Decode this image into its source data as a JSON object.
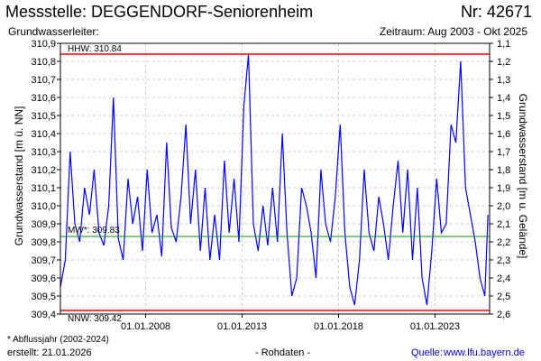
{
  "header": {
    "title": "Messstelle: DEGGENDORF-Seniorenheim",
    "number": "Nr: 42671",
    "aquifer": "Grundwasserleiter:",
    "period": "Zeitraum: Aug 2003 - Okt 2025"
  },
  "footer": {
    "footnote": "* Abflussjahr (2002-2024)",
    "created": "erstellt:  21.01.2026",
    "rawdata": "- Rohdaten -",
    "source_label": "Quelle:",
    "source_link": "www.lfu.bayern.de"
  },
  "colors": {
    "series": "#0000ff",
    "extreme_lines": "#ff0000",
    "mean_line": "#009900",
    "grid": "#cccccc"
  },
  "chart_data": {
    "type": "line",
    "title": "",
    "ylabel": "Grundwasserstand [m ü. NN]",
    "ylabel_right": "Grundwasserstand [m u. Gelände]",
    "xlim": [
      "2003-08-01",
      "2025-10-31"
    ],
    "ylim": [
      309.4,
      310.9
    ],
    "ylim_right": [
      2.6,
      1.1
    ],
    "x_ticks": [
      "01.01.2008",
      "01.01.2013",
      "01.01.2018",
      "01.01.2023"
    ],
    "y_ticks": [
      "309,4",
      "309,5",
      "309,6",
      "309,7",
      "309,8",
      "309,9",
      "310,0",
      "310,1",
      "310,2",
      "310,3",
      "310,4",
      "310,5",
      "310,6",
      "310,7",
      "310,8",
      "310,9"
    ],
    "y_right_ticks": [
      "2,6",
      "2,5",
      "2,4",
      "2,3",
      "2,2",
      "2,1",
      "2,0",
      "1,9",
      "1,8",
      "1,7",
      "1,6",
      "1,5",
      "1,4",
      "1,3",
      "1,2",
      "1,1"
    ],
    "grid": true,
    "reference_lines": [
      {
        "label": "HHW: 310.84",
        "value": 310.84
      },
      {
        "label": "MW*: 309.83",
        "value": 309.83
      },
      {
        "label": "NNW: 309.42",
        "value": 309.42
      }
    ],
    "series": [
      {
        "x": [
          "2003-08",
          "2003-11",
          "2004-02",
          "2004-05",
          "2004-08",
          "2004-11",
          "2005-02",
          "2005-05",
          "2005-08",
          "2005-11",
          "2006-02",
          "2006-05",
          "2006-08",
          "2006-11",
          "2007-02",
          "2007-05",
          "2007-08",
          "2007-11",
          "2008-02",
          "2008-05",
          "2008-08",
          "2008-11",
          "2009-02",
          "2009-05",
          "2009-08",
          "2009-11",
          "2010-02",
          "2010-05",
          "2010-08",
          "2010-11",
          "2011-02",
          "2011-05",
          "2011-08",
          "2011-11",
          "2012-02",
          "2012-05",
          "2012-08",
          "2012-11",
          "2013-02",
          "2013-05",
          "2013-08",
          "2013-11",
          "2014-02",
          "2014-05",
          "2014-08",
          "2014-11",
          "2015-02",
          "2015-05",
          "2015-08",
          "2015-11",
          "2016-02",
          "2016-05",
          "2016-08",
          "2016-11",
          "2017-02",
          "2017-05",
          "2017-08",
          "2017-11",
          "2018-02",
          "2018-05",
          "2018-08",
          "2018-11",
          "2019-02",
          "2019-05",
          "2019-08",
          "2019-11",
          "2020-02",
          "2020-05",
          "2020-08",
          "2020-11",
          "2021-02",
          "2021-05",
          "2021-08",
          "2021-11",
          "2022-02",
          "2022-05",
          "2022-08",
          "2022-11",
          "2023-02",
          "2023-05",
          "2023-08",
          "2023-11",
          "2024-02",
          "2024-05",
          "2024-08",
          "2024-11",
          "2025-02",
          "2025-05",
          "2025-08",
          "2025-10"
        ],
        "values": [
          309.55,
          309.7,
          310.3,
          309.9,
          309.8,
          310.1,
          309.95,
          310.2,
          309.85,
          309.78,
          310.0,
          310.6,
          309.82,
          309.7,
          310.15,
          309.9,
          310.05,
          309.75,
          310.2,
          309.85,
          309.95,
          309.72,
          310.35,
          309.88,
          309.8,
          310.05,
          310.45,
          309.9,
          310.2,
          309.75,
          310.1,
          309.7,
          309.95,
          309.7,
          310.25,
          309.85,
          310.15,
          309.8,
          310.55,
          310.84,
          309.9,
          309.75,
          310.0,
          309.78,
          310.1,
          309.8,
          310.4,
          309.85,
          309.5,
          309.6,
          310.1,
          310.0,
          309.85,
          309.6,
          310.2,
          309.9,
          309.8,
          310.05,
          310.45,
          309.85,
          309.55,
          309.45,
          309.7,
          310.2,
          309.85,
          309.75,
          310.05,
          309.9,
          309.7,
          310.0,
          310.25,
          309.85,
          310.2,
          309.7,
          310.1,
          309.6,
          309.45,
          309.75,
          310.15,
          309.85,
          309.9,
          310.45,
          310.35,
          310.8,
          310.1,
          309.95,
          309.8,
          309.6,
          309.5,
          309.95
        ]
      }
    ]
  }
}
